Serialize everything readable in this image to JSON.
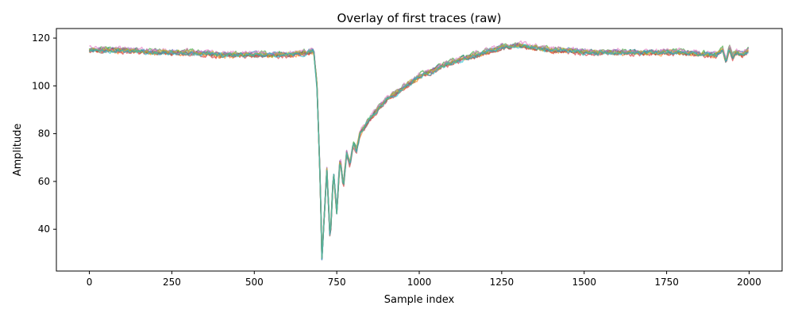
{
  "chart_data": {
    "type": "line",
    "title": "Overlay of first traces (raw)",
    "xlabel": "Sample index",
    "ylabel": "Amplitude",
    "xlim": [
      -100,
      2100
    ],
    "ylim": [
      22.5,
      124
    ],
    "grid": false,
    "legend": "none",
    "xticks": [
      0,
      250,
      500,
      750,
      1000,
      1250,
      1500,
      1750,
      2000
    ],
    "yticks": [
      40,
      60,
      80,
      100,
      120
    ],
    "profile": {
      "x": [
        0,
        100,
        200,
        300,
        400,
        500,
        600,
        660,
        680,
        690,
        700,
        705,
        710,
        720,
        730,
        740,
        750,
        760,
        770,
        780,
        790,
        800,
        810,
        820,
        840,
        860,
        880,
        900,
        950,
        1000,
        1050,
        1100,
        1150,
        1200,
        1250,
        1300,
        1350,
        1400,
        1450,
        1500,
        1600,
        1700,
        1800,
        1900,
        1920,
        1930,
        1940,
        1950,
        1960,
        1980,
        2000
      ],
      "y": [
        115,
        115,
        114,
        114,
        113,
        113,
        113,
        114,
        115,
        100,
        60,
        28,
        40,
        65,
        35,
        64,
        47,
        70,
        58,
        72,
        67,
        76,
        73,
        80,
        84,
        88,
        91,
        94,
        99,
        104,
        107,
        110,
        112,
        114,
        116,
        117,
        116,
        115,
        115,
        114,
        114,
        114,
        114,
        113,
        115,
        110,
        116,
        112,
        114,
        113,
        115
      ]
    },
    "series": [
      {
        "color": "#1f77b4",
        "noise": 1.4,
        "offset": 0.3
      },
      {
        "color": "#ff7f0e",
        "noise": 1.5,
        "offset": -0.4
      },
      {
        "color": "#2ca02c",
        "noise": 1.5,
        "offset": 0.5
      },
      {
        "color": "#d62728",
        "noise": 1.4,
        "offset": -0.6
      },
      {
        "color": "#9467bd",
        "noise": 1.4,
        "offset": 0.2
      },
      {
        "color": "#8c564b",
        "noise": 1.3,
        "offset": -0.2
      },
      {
        "color": "#e377c2",
        "noise": 1.6,
        "offset": 0.7
      },
      {
        "color": "#7f7f7f",
        "noise": 1.3,
        "offset": -0.1
      },
      {
        "color": "#bcbd22",
        "noise": 1.4,
        "offset": 0.1
      },
      {
        "color": "#17becf",
        "noise": 1.4,
        "offset": -0.3
      }
    ],
    "line_opacity": 0.6
  }
}
